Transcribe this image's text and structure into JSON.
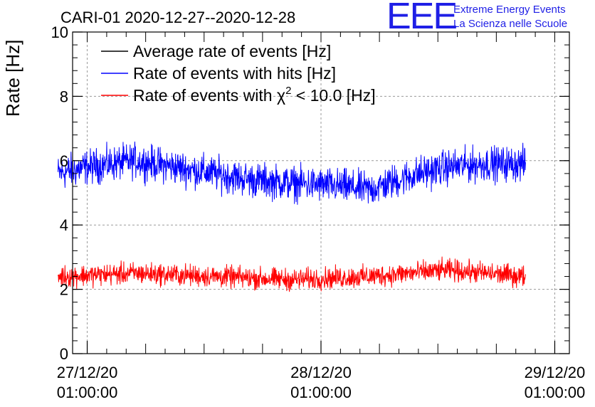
{
  "chart_data": {
    "type": "line",
    "title": "CARI-01 2020-12-27--2020-12-28",
    "xlabel": "",
    "ylabel": "Rate [Hz]",
    "ylim": [
      0,
      10
    ],
    "yticks": [
      0,
      2,
      4,
      6,
      8,
      10
    ],
    "xlim_hours": [
      -1.5,
      49.5
    ],
    "xticks": [
      {
        "hours": 0,
        "date": "27/12/20",
        "time": "01:00:00"
      },
      {
        "hours": 24,
        "date": "28/12/20",
        "time": "01:00:00"
      },
      {
        "hours": 48,
        "date": "29/12/20",
        "time": "01:00:00"
      }
    ],
    "grid": true,
    "legend_position": "top-left",
    "series": [
      {
        "name": "Average rate of events [Hz]",
        "color": "#000000",
        "points": []
      },
      {
        "name": "Rate of events with hits [Hz]",
        "color": "#0000ff",
        "x_range_hours": [
          -3.0,
          45.0
        ],
        "trend": [
          [
            -3,
            5.6
          ],
          [
            0,
            5.8
          ],
          [
            5,
            6.0
          ],
          [
            9,
            5.8
          ],
          [
            13,
            5.6
          ],
          [
            17,
            5.4
          ],
          [
            21,
            5.3
          ],
          [
            26,
            5.2
          ],
          [
            29,
            5.1
          ],
          [
            31,
            5.3
          ],
          [
            34,
            5.6
          ],
          [
            37,
            5.8
          ],
          [
            41,
            5.9
          ],
          [
            45,
            5.9
          ]
        ],
        "noise_amplitude": 0.4
      },
      {
        "name": "Rate of events with χ² < 10.0 [Hz]",
        "color": "#ff0000",
        "x_range_hours": [
          -3.0,
          45.0
        ],
        "trend": [
          [
            -3,
            2.4
          ],
          [
            5,
            2.5
          ],
          [
            13,
            2.4
          ],
          [
            21,
            2.3
          ],
          [
            29,
            2.4
          ],
          [
            37,
            2.6
          ],
          [
            45,
            2.4
          ]
        ],
        "noise_amplitude": 0.25
      }
    ]
  },
  "logo": {
    "text": "EEE",
    "line1": "Extreme Energy Events",
    "line2": "La Scienza nelle Scuole"
  },
  "legend_labels": {
    "avg_text": "Average rate of events [Hz]",
    "hits_text": "Rate of events with hits [Hz]",
    "chi_prefix": "Rate of events with ",
    "chi_symbol": "χ",
    "chi_exp": "2",
    "chi_suffix": " < 10.0 [Hz]"
  }
}
